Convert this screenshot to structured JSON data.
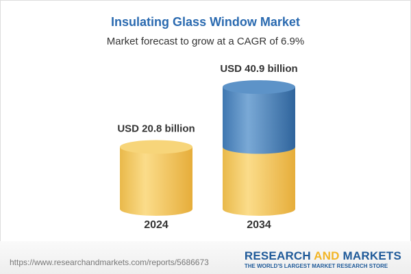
{
  "title": "Insulating Glass Window Market",
  "subtitle": "Market forecast to grow at a CAGR of 6.9%",
  "chart_data": {
    "type": "bar",
    "style": "3d-cylinder",
    "categories": [
      "2024",
      "2034"
    ],
    "values": [
      20.8,
      40.9
    ],
    "data_labels": [
      "USD 20.8 billion",
      "USD 40.9 billion"
    ],
    "unit": "USD billion",
    "colors": {
      "base": "#f2c95a",
      "growth": "#4a84bd"
    }
  },
  "footer": {
    "url": "https://www.researchandmarkets.com/reports/5686673",
    "logo_part1": "RESEARCH ",
    "logo_part2": "AND",
    "logo_part3": " MARKETS",
    "tagline": "THE WORLD'S LARGEST MARKET RESEARCH STORE"
  }
}
